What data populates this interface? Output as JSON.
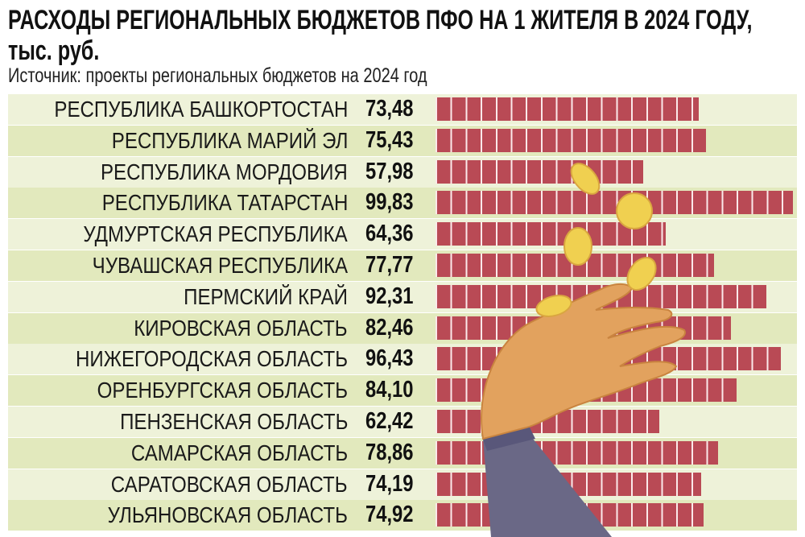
{
  "chart_data": {
    "type": "bar",
    "orientation": "horizontal",
    "title": "РАСХОДЫ РЕГИОНАЛЬНЫХ БЮДЖЕТОВ ПФО НА 1 ЖИТЕЛЯ В 2024 ГОДУ,",
    "title_line2": "тыс. руб.",
    "subtitle": "Источник: проекты региональных бюджетов на 2024 год",
    "categories": [
      "РЕСПУБЛИКА БАШКОРТОСТАН",
      "РЕСПУБЛИКА МАРИЙ ЭЛ",
      "РЕСПУБЛИКА МОРДОВИЯ",
      "РЕСПУБЛИКА ТАТАРСТАН",
      "УДМУРТСКАЯ РЕСПУБЛИКА",
      "ЧУВАШСКАЯ РЕСПУБЛИКА",
      "ПЕРМСКИЙ КРАЙ",
      "КИРОВСКАЯ ОБЛАСТЬ",
      "НИЖЕГОРОДСКАЯ ОБЛАСТЬ",
      "ОРЕНБУРГСКАЯ ОБЛАСТЬ",
      "ПЕНЗЕНСКАЯ ОБЛАСТЬ",
      "САМАРСКАЯ ОБЛАСТЬ",
      "САРАТОВСКАЯ ОБЛАСТЬ",
      "УЛЬЯНОВСКАЯ ОБЛАСТЬ"
    ],
    "values": [
      73.48,
      75.43,
      57.98,
      99.83,
      64.36,
      77.77,
      92.31,
      82.46,
      96.43,
      84.1,
      62.42,
      78.86,
      74.19,
      74.92
    ],
    "value_labels": [
      "73,48",
      "75,43",
      "57,98",
      "99,83",
      "64,36",
      "77,77",
      "92,31",
      "82,46",
      "96,43",
      "84,10",
      "62,42",
      "78,86",
      "74,19",
      "74,92"
    ],
    "xlim": [
      0,
      100
    ],
    "grid": false,
    "bar_color": "#b94a55"
  }
}
